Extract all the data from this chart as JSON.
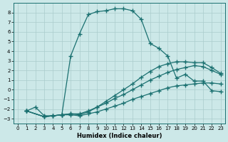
{
  "xlabel": "Humidex (Indice chaleur)",
  "bg_color": "#cce8e8",
  "grid_color": "#aacccc",
  "line_color": "#1a7070",
  "xlim": [
    -0.5,
    23.5
  ],
  "ylim": [
    -3.5,
    9.0
  ],
  "xticks": [
    0,
    1,
    2,
    3,
    4,
    5,
    6,
    7,
    8,
    9,
    10,
    11,
    12,
    13,
    14,
    15,
    16,
    17,
    18,
    19,
    20,
    21,
    22,
    23
  ],
  "yticks": [
    -3,
    -2,
    -1,
    0,
    1,
    2,
    3,
    4,
    5,
    6,
    7,
    8
  ],
  "curve_main_x": [
    1,
    2,
    3,
    4,
    5,
    6,
    7,
    8,
    9,
    10,
    11,
    12,
    13,
    14,
    15,
    16,
    17,
    18,
    19,
    20,
    21,
    22,
    23
  ],
  "curve_main_y": [
    -2.2,
    -1.8,
    -2.7,
    -2.7,
    -2.6,
    3.5,
    5.8,
    7.8,
    8.1,
    8.2,
    8.4,
    8.4,
    8.2,
    7.3,
    4.8,
    4.3,
    3.5,
    1.2,
    1.6,
    0.9,
    0.9,
    -0.1,
    -0.2
  ],
  "curve_a_x": [
    1,
    3,
    4,
    5,
    6,
    7,
    8,
    9,
    10,
    11,
    12,
    13,
    14,
    15,
    16,
    17,
    18,
    19,
    20,
    21,
    22,
    23
  ],
  "curve_a_y": [
    -2.2,
    -2.8,
    -2.7,
    -2.6,
    -2.5,
    -2.5,
    -2.2,
    -1.8,
    -1.4,
    -0.9,
    -0.5,
    0.0,
    0.5,
    1.0,
    1.4,
    1.8,
    2.1,
    2.3,
    2.5,
    2.4,
    2.0,
    1.6
  ],
  "curve_b_x": [
    1,
    3,
    4,
    5,
    6,
    7,
    8,
    9,
    10,
    11,
    12,
    13,
    14,
    15,
    16,
    17,
    18,
    19,
    20,
    21,
    22,
    23
  ],
  "curve_b_y": [
    -2.2,
    -2.8,
    -2.7,
    -2.6,
    -2.6,
    -2.7,
    -2.5,
    -2.3,
    -2.0,
    -1.7,
    -1.4,
    -1.0,
    -0.7,
    -0.4,
    -0.1,
    0.2,
    0.4,
    0.5,
    0.6,
    0.7,
    0.7,
    0.6
  ],
  "curve_c_x": [
    1,
    3,
    5,
    6,
    7,
    8,
    9,
    10,
    11,
    12,
    13,
    14,
    15,
    16,
    17,
    18,
    19,
    20,
    21,
    22,
    23
  ],
  "curve_c_y": [
    -2.2,
    -2.8,
    -2.6,
    -2.5,
    -2.6,
    -2.3,
    -1.8,
    -1.2,
    -0.6,
    0.0,
    0.6,
    1.3,
    1.9,
    2.4,
    2.7,
    2.9,
    2.9,
    2.8,
    2.8,
    2.3,
    1.7
  ]
}
